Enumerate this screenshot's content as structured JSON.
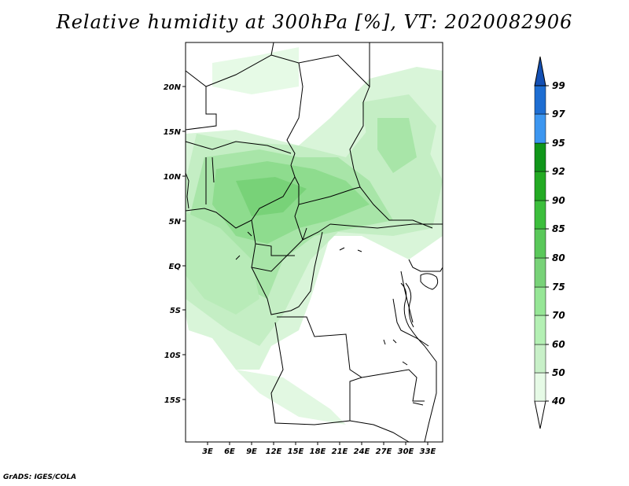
{
  "title": "Relative humidity at 300hPa [%], VT: 2020082906",
  "credit": "GrADS: IGES/COLA",
  "map": {
    "lon_range": [
      0,
      35
    ],
    "lat_range": [
      -19.5,
      25
    ],
    "lon_labels": [
      "3E",
      "6E",
      "9E",
      "12E",
      "15E",
      "18E",
      "21E",
      "24E",
      "27E",
      "30E",
      "33E"
    ],
    "lat_labels": [
      "20N",
      "15N",
      "10N",
      "5N",
      "EQ",
      "5S",
      "10S",
      "15S"
    ]
  },
  "colorbar": {
    "levels": [
      "40",
      "50",
      "60",
      "70",
      "75",
      "80",
      "85",
      "90",
      "92",
      "95",
      "97",
      "99"
    ],
    "colors": [
      "#e6fae6",
      "#c8f0c8",
      "#b4f0b4",
      "#96e696",
      "#78d278",
      "#5ac85a",
      "#3cbe3c",
      "#23aa23",
      "#10961a",
      "#1e8c1e",
      "#3c96f0",
      "#1e6ed2",
      "#1450b4"
    ]
  }
}
